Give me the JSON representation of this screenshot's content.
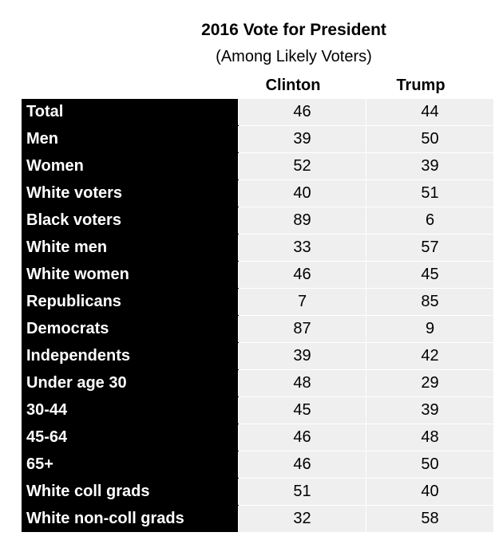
{
  "chart_data": {
    "type": "table",
    "title": "2016 Vote for President",
    "subtitle": "(Among Likely Voters)",
    "columns": [
      "Clinton",
      "Trump"
    ],
    "rows": [
      {
        "label": "Total",
        "values": [
          46,
          44
        ]
      },
      {
        "label": "Men",
        "values": [
          39,
          50
        ]
      },
      {
        "label": "Women",
        "values": [
          52,
          39
        ]
      },
      {
        "label": "White voters",
        "values": [
          40,
          51
        ]
      },
      {
        "label": "Black voters",
        "values": [
          89,
          6
        ]
      },
      {
        "label": "White men",
        "values": [
          33,
          57
        ]
      },
      {
        "label": "White women",
        "values": [
          46,
          45
        ]
      },
      {
        "label": "Republicans",
        "values": [
          7,
          85
        ]
      },
      {
        "label": "Democrats",
        "values": [
          87,
          9
        ]
      },
      {
        "label": "Independents",
        "values": [
          39,
          42
        ]
      },
      {
        "label": "Under age 30",
        "values": [
          48,
          29
        ]
      },
      {
        "label": "30-44",
        "values": [
          45,
          39
        ]
      },
      {
        "label": "45-64",
        "values": [
          46,
          48
        ]
      },
      {
        "label": "65+",
        "values": [
          46,
          50
        ]
      },
      {
        "label": "White coll grads",
        "values": [
          51,
          40
        ]
      },
      {
        "label": "White non-coll grads",
        "values": [
          32,
          58
        ]
      }
    ]
  },
  "colors": {
    "label_background": "#000000",
    "label_text": "#ffffff",
    "cell_background": "#efefef"
  }
}
